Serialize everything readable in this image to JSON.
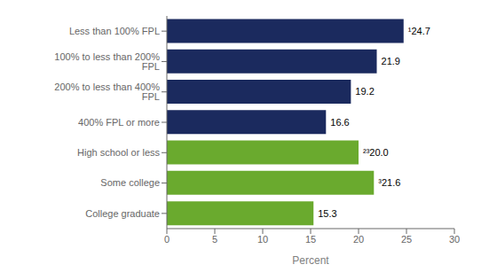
{
  "chart_data": {
    "type": "bar",
    "orientation": "horizontal",
    "categories": [
      "Less than 100% FPL",
      "100% to less than 200% FPL",
      "200% to less than 400% FPL",
      "400% FPL or more",
      "High school or less",
      "Some college",
      "College graduate"
    ],
    "values": [
      24.7,
      21.9,
      19.2,
      16.6,
      20.0,
      21.6,
      15.3
    ],
    "value_labels": [
      "¹24.7",
      "21.9",
      "19.2",
      "16.6",
      "²³20.0",
      "³21.6",
      "15.3"
    ],
    "colors": [
      "#1b2a5e",
      "#1b2a5e",
      "#1b2a5e",
      "#1b2a5e",
      "#6aaa2e",
      "#6aaa2e",
      "#6aaa2e"
    ],
    "xlabel": "Percent",
    "xlim": [
      0,
      30
    ],
    "xticks": [
      0,
      5,
      10,
      15,
      20,
      25,
      30
    ],
    "data_labels": true,
    "grid": false
  }
}
